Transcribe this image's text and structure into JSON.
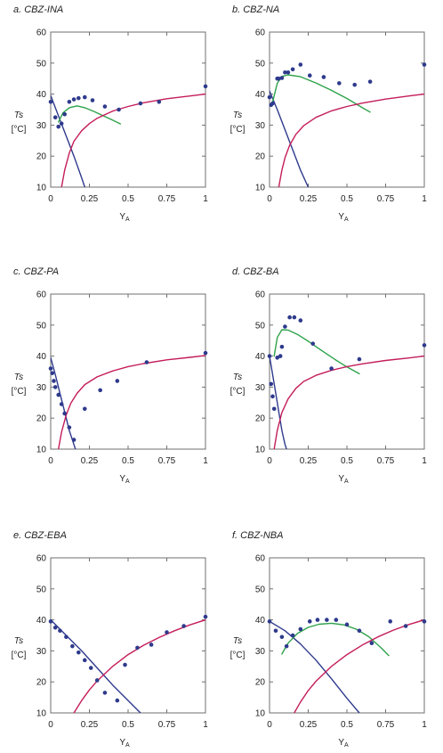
{
  "chart_data": [
    {
      "type": "scatter",
      "title": "a. CBZ-INA",
      "ylabel_top": "Ts",
      "ylabel_bottom": "[°C]",
      "xlabel": "Y",
      "xlabel_sub": "A",
      "xlim": [
        0,
        1
      ],
      "ylim": [
        10,
        60
      ],
      "x_ticks": [
        "0",
        "0.25",
        "0.5",
        "0.75",
        "1"
      ],
      "y_ticks": [
        "10",
        "20",
        "30",
        "40",
        "50",
        "60"
      ],
      "series": [
        {
          "kind": "points",
          "color": "#2e3a8c",
          "x": [
            0.0,
            0.03,
            0.05,
            0.07,
            0.09,
            0.12,
            0.15,
            0.18,
            0.22,
            0.27,
            0.35,
            0.44,
            0.58,
            0.7,
            1.0
          ],
          "y": [
            37.5,
            32.5,
            29.5,
            30.5,
            33.5,
            37.5,
            38.3,
            38.7,
            39.0,
            38.0,
            36.0,
            35.0,
            37.0,
            37.5,
            42.5
          ]
        },
        {
          "kind": "line",
          "color": "#2e3a8c",
          "x": [
            0.0,
            0.05,
            0.1,
            0.15,
            0.2,
            0.22
          ],
          "y": [
            39.5,
            33.0,
            26.5,
            20.0,
            13.0,
            10.0
          ]
        },
        {
          "kind": "line",
          "color": "#2ea24a",
          "x": [
            0.05,
            0.08,
            0.12,
            0.17,
            0.22,
            0.28,
            0.34,
            0.4,
            0.45
          ],
          "y": [
            31.0,
            34.0,
            35.6,
            36.2,
            35.6,
            34.4,
            33.0,
            31.6,
            30.4
          ]
        },
        {
          "kind": "line",
          "color": "#c41d5a",
          "x": [
            0.07,
            0.09,
            0.12,
            0.15,
            0.2,
            0.25,
            0.3,
            0.4,
            0.5,
            0.6,
            0.75,
            0.9,
            1.0
          ],
          "y": [
            10.0,
            15.5,
            21.0,
            24.8,
            28.2,
            30.5,
            32.2,
            34.5,
            36.0,
            37.2,
            38.5,
            39.4,
            40.0
          ]
        }
      ]
    },
    {
      "type": "scatter",
      "title": "b. CBZ-NA",
      "ylabel_top": "Ts",
      "ylabel_bottom": "[°C]",
      "xlabel": "Y",
      "xlabel_sub": "A",
      "xlim": [
        0,
        1
      ],
      "ylim": [
        10,
        60
      ],
      "x_ticks": [
        "0",
        "0.25",
        "0.5",
        "0.75",
        "1"
      ],
      "y_ticks": [
        "10",
        "20",
        "30",
        "40",
        "50",
        "60"
      ],
      "series": [
        {
          "kind": "points",
          "color": "#2e3a8c",
          "x": [
            0.0,
            0.01,
            0.02,
            0.05,
            0.06,
            0.08,
            0.1,
            0.12,
            0.15,
            0.2,
            0.26,
            0.35,
            0.45,
            0.55,
            0.65,
            1.0
          ],
          "y": [
            39.0,
            36.5,
            37.0,
            45.0,
            45.0,
            45.2,
            47.0,
            47.0,
            48.0,
            49.5,
            46.0,
            45.5,
            43.5,
            43.0,
            44.0,
            49.5
          ]
        },
        {
          "kind": "line",
          "color": "#2e3a8c",
          "x": [
            0.0,
            0.05,
            0.1,
            0.15,
            0.2,
            0.25
          ],
          "y": [
            41.0,
            35.0,
            28.5,
            22.0,
            15.5,
            10.0
          ]
        },
        {
          "kind": "line",
          "color": "#2ea24a",
          "x": [
            0.02,
            0.05,
            0.08,
            0.12,
            0.2,
            0.3,
            0.4,
            0.5,
            0.6,
            0.65
          ],
          "y": [
            37.5,
            43.5,
            45.7,
            46.2,
            45.6,
            43.6,
            41.2,
            38.6,
            35.6,
            34.2
          ]
        },
        {
          "kind": "line",
          "color": "#c41d5a",
          "x": [
            0.06,
            0.08,
            0.1,
            0.13,
            0.17,
            0.22,
            0.3,
            0.4,
            0.5,
            0.6,
            0.75,
            0.9,
            1.0
          ],
          "y": [
            10.0,
            15.5,
            19.5,
            23.5,
            27.0,
            29.8,
            32.5,
            34.6,
            36.0,
            37.1,
            38.4,
            39.4,
            40.0
          ]
        }
      ]
    },
    {
      "type": "scatter",
      "title": "c. CBZ-PA",
      "ylabel_top": "Ts",
      "ylabel_bottom": "[°C]",
      "xlabel": "Y",
      "xlabel_sub": "A",
      "xlim": [
        0,
        1
      ],
      "ylim": [
        10,
        60
      ],
      "x_ticks": [
        "0",
        "0.25",
        "0.5",
        "0.75",
        "1"
      ],
      "y_ticks": [
        "10",
        "20",
        "30",
        "40",
        "50",
        "60"
      ],
      "series": [
        {
          "kind": "points",
          "color": "#2e3a8c",
          "x": [
            0.0,
            0.01,
            0.02,
            0.03,
            0.05,
            0.07,
            0.09,
            0.12,
            0.15,
            0.22,
            0.32,
            0.43,
            0.62,
            1.0
          ],
          "y": [
            36.0,
            34.5,
            32.0,
            30.0,
            27.5,
            24.5,
            21.5,
            17.0,
            13.0,
            23.0,
            29.0,
            32.0,
            38.0,
            41.0
          ]
        },
        {
          "kind": "line",
          "color": "#2e3a8c",
          "x": [
            0.0,
            0.03,
            0.06,
            0.09,
            0.12,
            0.15,
            0.16
          ],
          "y": [
            39.5,
            34.0,
            28.0,
            22.0,
            16.0,
            11.5,
            10.0
          ]
        },
        {
          "kind": "line",
          "color": "#c41d5a",
          "x": [
            0.05,
            0.07,
            0.1,
            0.13,
            0.17,
            0.22,
            0.3,
            0.4,
            0.5,
            0.6,
            0.75,
            0.9,
            1.0
          ],
          "y": [
            10.0,
            15.5,
            21.0,
            24.8,
            28.0,
            30.8,
            33.3,
            35.2,
            36.6,
            37.6,
            38.8,
            39.6,
            40.2
          ]
        }
      ]
    },
    {
      "type": "scatter",
      "title": "d. CBZ-BA",
      "ylabel_top": "Ts",
      "ylabel_bottom": "[°C]",
      "xlabel": "Y",
      "xlabel_sub": "A",
      "xlim": [
        0,
        1
      ],
      "ylim": [
        10,
        60
      ],
      "x_ticks": [
        "0",
        "0.25",
        "0.5",
        "0.75",
        "1"
      ],
      "y_ticks": [
        "10",
        "20",
        "30",
        "40",
        "50",
        "60"
      ],
      "series": [
        {
          "kind": "points",
          "color": "#2e3a8c",
          "x": [
            0.0,
            0.01,
            0.02,
            0.03,
            0.05,
            0.07,
            0.08,
            0.1,
            0.13,
            0.16,
            0.2,
            0.28,
            0.4,
            0.58,
            1.0
          ],
          "y": [
            40.0,
            31.0,
            27.0,
            23.0,
            39.5,
            40.0,
            43.0,
            49.5,
            52.5,
            52.5,
            51.5,
            44.0,
            36.0,
            39.0,
            43.5
          ]
        },
        {
          "kind": "line",
          "color": "#2e3a8c",
          "x": [
            0.0,
            0.02,
            0.04,
            0.06,
            0.08,
            0.1,
            0.11
          ],
          "y": [
            40.0,
            34.0,
            28.0,
            22.0,
            16.0,
            11.5,
            10.0
          ]
        },
        {
          "kind": "line",
          "color": "#2ea24a",
          "x": [
            0.03,
            0.05,
            0.08,
            0.12,
            0.18,
            0.25,
            0.33,
            0.42,
            0.5,
            0.58
          ],
          "y": [
            40.0,
            46.0,
            48.5,
            48.4,
            47.0,
            44.8,
            42.0,
            39.0,
            36.5,
            34.3
          ]
        },
        {
          "kind": "line",
          "color": "#c41d5a",
          "x": [
            0.03,
            0.05,
            0.08,
            0.12,
            0.17,
            0.22,
            0.3,
            0.4,
            0.5,
            0.6,
            0.75,
            0.9,
            1.0
          ],
          "y": [
            10.0,
            16.0,
            21.8,
            26.2,
            29.6,
            31.8,
            33.8,
            35.4,
            36.6,
            37.5,
            38.6,
            39.4,
            40.0
          ]
        }
      ]
    },
    {
      "type": "scatter",
      "title": "e. CBZ-EBA",
      "ylabel_top": "Ts",
      "ylabel_bottom": "[°C]",
      "xlabel": "Y",
      "xlabel_sub": "A",
      "xlim": [
        0,
        1
      ],
      "ylim": [
        10,
        60
      ],
      "x_ticks": [
        "0",
        "0.25",
        "0.5",
        "0.75",
        "1"
      ],
      "y_ticks": [
        "10",
        "20",
        "30",
        "40",
        "50",
        "60"
      ],
      "series": [
        {
          "kind": "points",
          "color": "#2e3a8c",
          "x": [
            0.0,
            0.03,
            0.06,
            0.1,
            0.14,
            0.18,
            0.22,
            0.26,
            0.3,
            0.35,
            0.43,
            0.48,
            0.56,
            0.65,
            0.75,
            0.86,
            1.0
          ],
          "y": [
            39.5,
            37.5,
            36.5,
            34.5,
            31.5,
            29.5,
            27.0,
            24.5,
            20.5,
            16.5,
            14.0,
            25.5,
            31.0,
            32.0,
            36.0,
            38.0,
            41.0
          ]
        },
        {
          "kind": "line",
          "color": "#2e3a8c",
          "x": [
            0.0,
            0.1,
            0.2,
            0.3,
            0.4,
            0.5,
            0.58
          ],
          "y": [
            40.0,
            35.0,
            30.0,
            24.5,
            19.0,
            14.0,
            10.0
          ]
        },
        {
          "kind": "line",
          "color": "#c41d5a",
          "x": [
            0.15,
            0.2,
            0.25,
            0.3,
            0.4,
            0.5,
            0.6,
            0.7,
            0.8,
            0.9,
            1.0
          ],
          "y": [
            10.0,
            14.0,
            17.4,
            20.3,
            25.0,
            28.8,
            31.8,
            34.3,
            36.5,
            38.4,
            40.0
          ]
        }
      ]
    },
    {
      "type": "scatter",
      "title": "f. CBZ-NBA",
      "ylabel_top": "Ts",
      "ylabel_bottom": "[°C]",
      "xlabel": "Y",
      "xlabel_sub": "A",
      "xlim": [
        0,
        1
      ],
      "ylim": [
        10,
        60
      ],
      "x_ticks": [
        "0",
        "0.25",
        "0.5",
        "0.75",
        "1"
      ],
      "y_ticks": [
        "10",
        "20",
        "30",
        "40",
        "50",
        "60"
      ],
      "series": [
        {
          "kind": "points",
          "color": "#2e3a8c",
          "x": [
            0.0,
            0.04,
            0.08,
            0.11,
            0.15,
            0.2,
            0.26,
            0.31,
            0.37,
            0.43,
            0.5,
            0.58,
            0.66,
            0.78,
            0.88,
            1.0
          ],
          "y": [
            39.5,
            36.5,
            34.5,
            31.5,
            35.0,
            37.0,
            39.5,
            40.0,
            40.0,
            40.0,
            38.5,
            36.5,
            32.5,
            39.5,
            38.0,
            39.5
          ]
        },
        {
          "kind": "line",
          "color": "#2e3a8c",
          "x": [
            0.0,
            0.1,
            0.2,
            0.3,
            0.4,
            0.5,
            0.58
          ],
          "y": [
            39.5,
            36.5,
            32.2,
            27.0,
            21.0,
            14.7,
            10.0
          ]
        },
        {
          "kind": "line",
          "color": "#2ea24a",
          "x": [
            0.08,
            0.12,
            0.18,
            0.25,
            0.32,
            0.4,
            0.48,
            0.56,
            0.64,
            0.72,
            0.77
          ],
          "y": [
            29.0,
            32.5,
            35.6,
            37.6,
            38.6,
            38.9,
            38.4,
            37.0,
            34.6,
            31.0,
            28.5
          ]
        },
        {
          "kind": "line",
          "color": "#c41d5a",
          "x": [
            0.16,
            0.2,
            0.25,
            0.3,
            0.4,
            0.5,
            0.6,
            0.7,
            0.8,
            0.9,
            1.0
          ],
          "y": [
            10.0,
            13.5,
            17.2,
            20.2,
            25.0,
            28.8,
            31.9,
            34.5,
            36.7,
            38.5,
            40.0
          ]
        }
      ]
    }
  ]
}
